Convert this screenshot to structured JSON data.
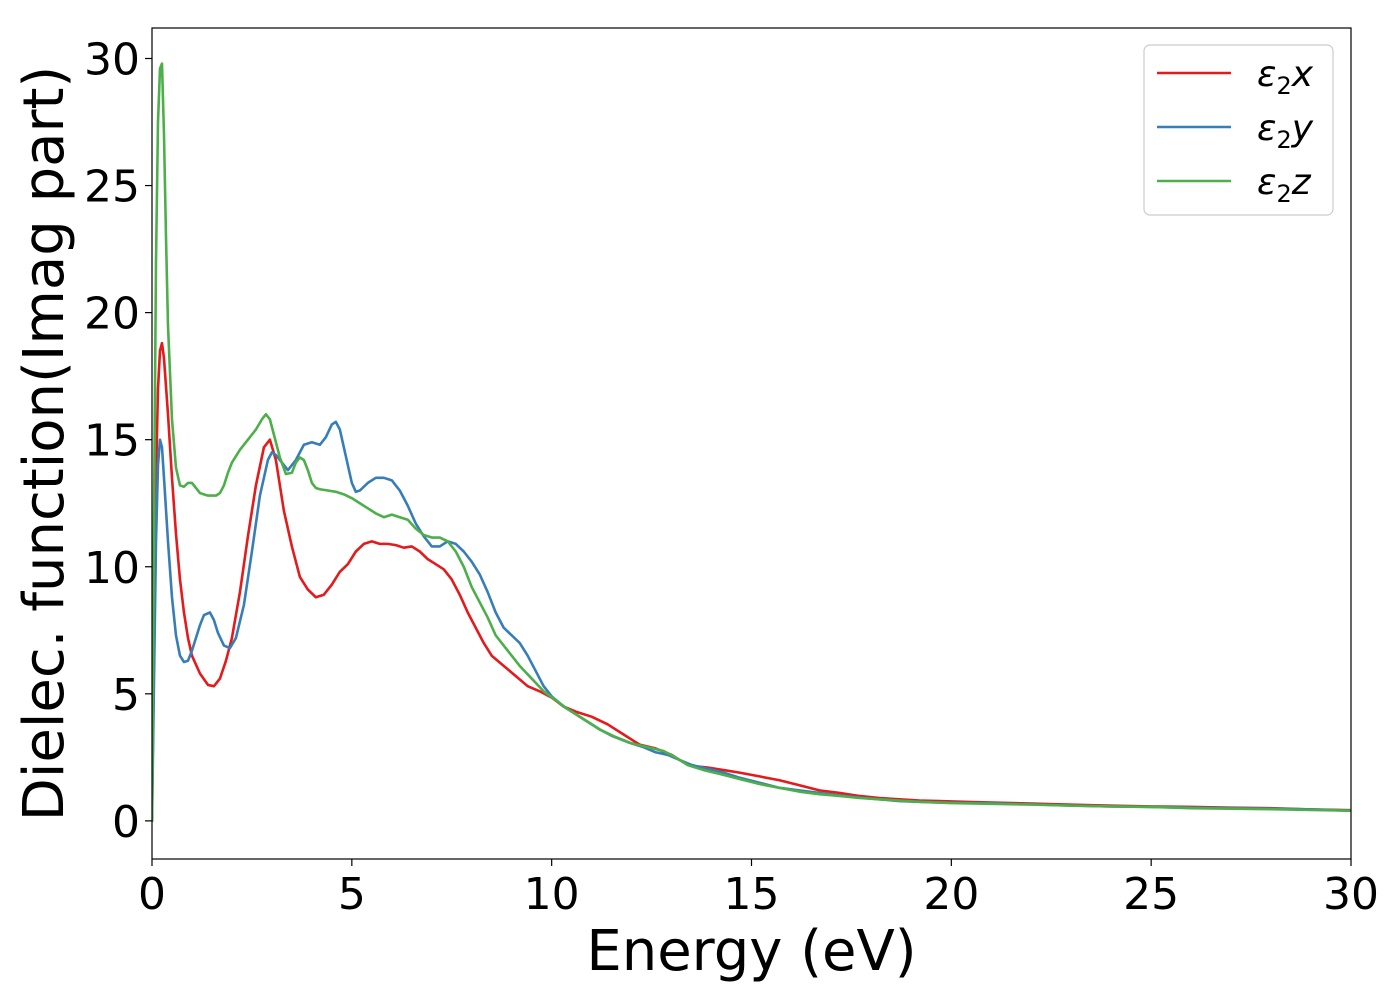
{
  "chart_data": {
    "type": "line",
    "title": "",
    "xlabel": "Energy (eV)",
    "ylabel": "Dielec. function(Imag part)",
    "xlim": [
      0,
      30
    ],
    "ylim": [
      -1.5,
      31.2
    ],
    "xticks": [
      0,
      5,
      10,
      15,
      20,
      25,
      30
    ],
    "yticks": [
      0,
      5,
      10,
      15,
      20,
      25,
      30
    ],
    "grid": false,
    "legend_position": "top-right",
    "series": [
      {
        "name": "ε2x",
        "label_main": "ε",
        "label_sub": "2",
        "label_var": "x",
        "color": "#e41a1c",
        "x": [
          0.0,
          0.05,
          0.1,
          0.15,
          0.2,
          0.25,
          0.3,
          0.4,
          0.5,
          0.6,
          0.7,
          0.8,
          0.9,
          1.0,
          1.2,
          1.4,
          1.55,
          1.7,
          1.85,
          2.0,
          2.2,
          2.4,
          2.6,
          2.8,
          2.95,
          3.1,
          3.3,
          3.5,
          3.7,
          3.9,
          4.1,
          4.3,
          4.5,
          4.7,
          4.9,
          5.1,
          5.3,
          5.5,
          5.7,
          5.9,
          6.1,
          6.3,
          6.5,
          6.7,
          6.9,
          7.1,
          7.3,
          7.5,
          7.7,
          7.9,
          8.1,
          8.3,
          8.5,
          8.8,
          9.1,
          9.4,
          9.7,
          10.0,
          10.3,
          10.6,
          11.0,
          11.4,
          11.8,
          12.2,
          12.6,
          13.0,
          13.3,
          13.6,
          13.9,
          14.3,
          14.7,
          15.2,
          15.7,
          16.2,
          16.7,
          17.2,
          17.7,
          18.2,
          18.7,
          19.2,
          19.7,
          20.3,
          21.0,
          22.0,
          23.0,
          24.0,
          25.0,
          26.0,
          27.0,
          28.0,
          29.0,
          30.0
        ],
        "y": [
          0.0,
          7.0,
          13.5,
          17.0,
          18.5,
          18.8,
          18.2,
          16.0,
          13.5,
          11.3,
          9.5,
          8.2,
          7.2,
          6.5,
          5.8,
          5.35,
          5.3,
          5.6,
          6.3,
          7.2,
          9.0,
          11.2,
          13.2,
          14.7,
          15.0,
          14.2,
          12.2,
          10.8,
          9.6,
          9.1,
          8.8,
          8.9,
          9.3,
          9.8,
          10.1,
          10.6,
          10.9,
          11.0,
          10.9,
          10.9,
          10.85,
          10.75,
          10.8,
          10.6,
          10.3,
          10.1,
          9.9,
          9.5,
          8.9,
          8.2,
          7.6,
          7.0,
          6.5,
          6.1,
          5.7,
          5.3,
          5.1,
          4.85,
          4.5,
          4.3,
          4.1,
          3.8,
          3.4,
          3.0,
          2.85,
          2.6,
          2.3,
          2.15,
          2.1,
          2.0,
          1.9,
          1.75,
          1.6,
          1.4,
          1.2,
          1.1,
          0.98,
          0.9,
          0.85,
          0.8,
          0.78,
          0.75,
          0.72,
          0.68,
          0.64,
          0.6,
          0.57,
          0.55,
          0.52,
          0.5,
          0.45,
          0.42
        ]
      },
      {
        "name": "ε2y",
        "label_main": "ε",
        "label_sub": "2",
        "label_var": "y",
        "color": "#377eb8",
        "x": [
          0.0,
          0.05,
          0.1,
          0.15,
          0.2,
          0.25,
          0.3,
          0.4,
          0.5,
          0.6,
          0.7,
          0.8,
          0.9,
          1.0,
          1.1,
          1.2,
          1.3,
          1.45,
          1.55,
          1.65,
          1.8,
          1.95,
          2.1,
          2.3,
          2.5,
          2.7,
          2.9,
          3.0,
          3.1,
          3.25,
          3.4,
          3.6,
          3.8,
          4.0,
          4.2,
          4.35,
          4.5,
          4.6,
          4.7,
          4.8,
          4.9,
          5.0,
          5.1,
          5.2,
          5.4,
          5.6,
          5.8,
          6.0,
          6.2,
          6.4,
          6.6,
          6.8,
          7.0,
          7.2,
          7.4,
          7.6,
          7.8,
          8.0,
          8.2,
          8.4,
          8.6,
          8.8,
          9.0,
          9.2,
          9.4,
          9.6,
          9.8,
          10.0,
          10.3,
          10.6,
          10.9,
          11.2,
          11.5,
          11.9,
          12.3,
          12.6,
          12.9,
          13.2,
          13.5,
          13.9,
          14.3,
          14.7,
          15.2,
          15.7,
          16.2,
          16.7,
          17.2,
          17.7,
          18.2,
          18.7,
          19.2,
          19.8,
          20.5,
          21.2,
          22.0,
          23.0,
          24.0,
          25.0,
          26.0,
          27.0,
          28.0,
          29.0,
          30.0
        ],
        "y": [
          0.0,
          5.5,
          11.0,
          14.0,
          15.0,
          14.7,
          13.5,
          11.0,
          8.8,
          7.3,
          6.5,
          6.25,
          6.3,
          6.7,
          7.2,
          7.7,
          8.1,
          8.2,
          7.9,
          7.4,
          6.9,
          6.8,
          7.2,
          8.5,
          10.6,
          12.8,
          14.2,
          14.5,
          14.4,
          14.1,
          13.8,
          14.2,
          14.8,
          14.9,
          14.8,
          15.1,
          15.6,
          15.7,
          15.4,
          14.7,
          14.0,
          13.3,
          12.95,
          13.0,
          13.3,
          13.5,
          13.5,
          13.4,
          13.0,
          12.4,
          11.7,
          11.2,
          10.8,
          10.8,
          11.0,
          10.9,
          10.6,
          10.2,
          9.7,
          9.0,
          8.2,
          7.6,
          7.3,
          7.0,
          6.5,
          5.9,
          5.3,
          4.9,
          4.5,
          4.2,
          3.9,
          3.6,
          3.35,
          3.1,
          2.9,
          2.7,
          2.6,
          2.4,
          2.2,
          2.05,
          1.9,
          1.7,
          1.5,
          1.3,
          1.2,
          1.1,
          1.0,
          0.92,
          0.85,
          0.78,
          0.75,
          0.72,
          0.7,
          0.68,
          0.65,
          0.6,
          0.57,
          0.55,
          0.52,
          0.5,
          0.48,
          0.45,
          0.4
        ]
      },
      {
        "name": "ε2z",
        "label_main": "ε",
        "label_sub": "2",
        "label_var": "z",
        "color": "#4daf4a",
        "x": [
          0.0,
          0.05,
          0.1,
          0.15,
          0.2,
          0.25,
          0.3,
          0.35,
          0.4,
          0.5,
          0.6,
          0.7,
          0.8,
          0.9,
          1.0,
          1.1,
          1.2,
          1.3,
          1.4,
          1.5,
          1.6,
          1.7,
          1.8,
          1.9,
          2.0,
          2.2,
          2.4,
          2.6,
          2.75,
          2.85,
          2.95,
          3.05,
          3.2,
          3.35,
          3.5,
          3.6,
          3.7,
          3.8,
          3.9,
          4.0,
          4.1,
          4.2,
          4.4,
          4.6,
          4.8,
          5.0,
          5.2,
          5.4,
          5.6,
          5.8,
          6.0,
          6.2,
          6.4,
          6.6,
          6.8,
          7.0,
          7.2,
          7.4,
          7.6,
          7.8,
          8.0,
          8.2,
          8.4,
          8.6,
          8.8,
          9.0,
          9.2,
          9.5,
          9.8,
          10.1,
          10.4,
          10.8,
          11.2,
          11.6,
          12.0,
          12.4,
          12.8,
          13.1,
          13.4,
          13.8,
          14.2,
          14.7,
          15.2,
          15.7,
          16.2,
          16.7,
          17.2,
          17.7,
          18.2,
          18.7,
          19.2,
          20.0,
          21.0,
          22.0,
          23.0,
          24.0,
          25.0,
          26.0,
          27.0,
          28.0,
          29.0,
          30.0
        ],
        "y": [
          0.0,
          12.0,
          22.0,
          27.5,
          29.6,
          29.8,
          27.0,
          23.0,
          19.5,
          15.8,
          13.9,
          13.2,
          13.15,
          13.3,
          13.3,
          13.1,
          12.9,
          12.85,
          12.8,
          12.8,
          12.8,
          12.9,
          13.2,
          13.7,
          14.1,
          14.6,
          15.0,
          15.4,
          15.8,
          16.0,
          15.8,
          15.2,
          14.3,
          13.65,
          13.7,
          14.1,
          14.3,
          14.2,
          13.8,
          13.3,
          13.1,
          13.05,
          13.0,
          12.95,
          12.85,
          12.7,
          12.5,
          12.3,
          12.1,
          11.95,
          12.05,
          11.95,
          11.85,
          11.5,
          11.25,
          11.15,
          11.15,
          11.0,
          10.6,
          10.0,
          9.2,
          8.6,
          8.0,
          7.3,
          6.9,
          6.5,
          6.1,
          5.6,
          5.1,
          4.75,
          4.4,
          4.0,
          3.6,
          3.3,
          3.05,
          2.9,
          2.75,
          2.5,
          2.2,
          2.0,
          1.85,
          1.65,
          1.45,
          1.3,
          1.15,
          1.05,
          0.98,
          0.9,
          0.85,
          0.8,
          0.75,
          0.7,
          0.67,
          0.64,
          0.6,
          0.57,
          0.55,
          0.5,
          0.48,
          0.46,
          0.43,
          0.4
        ]
      }
    ]
  }
}
